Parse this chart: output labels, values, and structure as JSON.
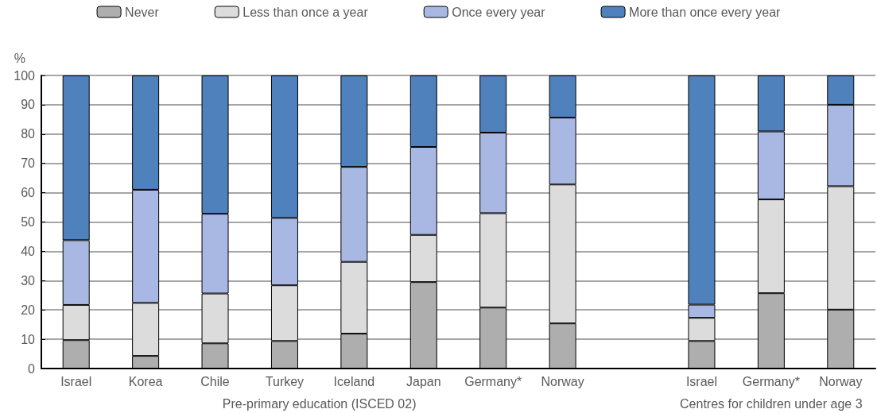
{
  "chart_data": {
    "type": "bar",
    "stacked": true,
    "ylabel": "%",
    "categories": [
      "Israel",
      "Korea",
      "Chile",
      "Turkey",
      "Iceland",
      "Japan",
      "Germany*",
      "Norway",
      null,
      "Israel",
      "Germany*",
      "Norway"
    ],
    "series": [
      {
        "name": "Never",
        "color": "#aeaeae",
        "values": [
          9.7,
          4.3,
          8.6,
          9.4,
          11.9,
          29.5,
          20.8,
          15.4,
          null,
          9.4,
          25.7,
          20.1
        ]
      },
      {
        "name": "Less than once a year",
        "color": "#dcdcdc",
        "values": [
          12,
          18.1,
          17,
          19,
          24.5,
          16.1,
          32.2,
          47.4,
          null,
          7.9,
          32,
          42.1
        ]
      },
      {
        "name": "Once every year",
        "color": "#a8b8e2",
        "values": [
          22.1,
          38.6,
          27.2,
          23,
          32.4,
          30,
          27.5,
          22.8,
          null,
          4.5,
          23.2,
          27.8
        ]
      },
      {
        "name": "More than once every year",
        "color": "#4f81bd",
        "values": [
          56.2,
          39,
          47.2,
          48.6,
          31.2,
          24.4,
          19.5,
          14.4,
          null,
          78.2,
          19.1,
          10
        ]
      }
    ],
    "ylim": [
      0,
      100
    ],
    "yticks": [
      0,
      10,
      20,
      30,
      40,
      50,
      60,
      70,
      80,
      90,
      100
    ],
    "grid": "y",
    "legend": "top",
    "annotations": [
      "Pre-primary education (ISCED 02)",
      "Centres for children under age 3"
    ]
  }
}
